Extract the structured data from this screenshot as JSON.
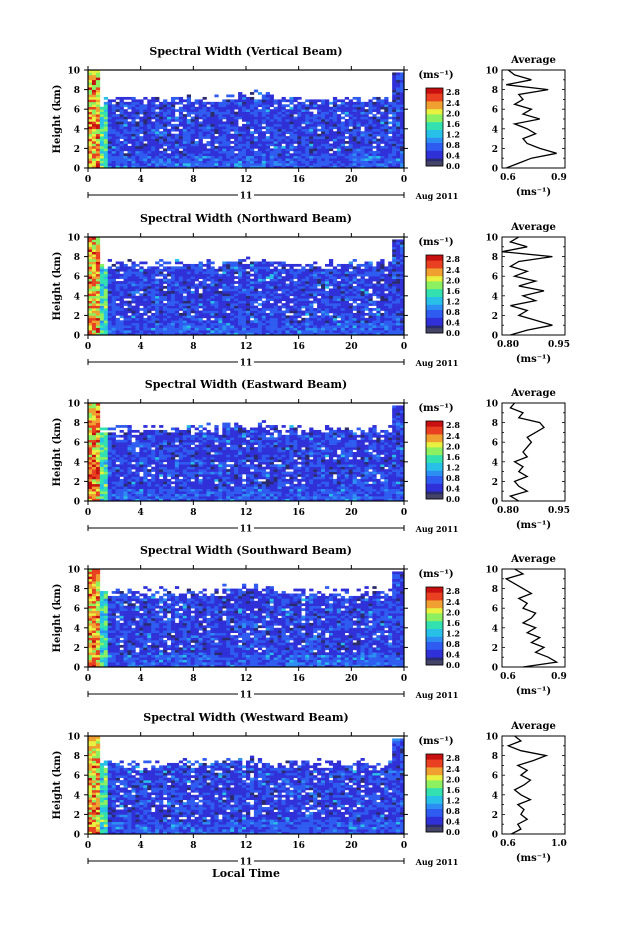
{
  "figure": {
    "xlabel": "Local Time",
    "date_label": "Aug 2011",
    "day_label": "11",
    "colorbar_unit": "(ms⁻¹)",
    "colorbar_ticks": [
      "0.0",
      "0.4",
      "0.8",
      "1.2",
      "1.6",
      "2.0",
      "2.4",
      "2.8"
    ],
    "profile_title": "Average",
    "profile_xlabel": "(ms⁻¹)",
    "ylabel": "Height (km)",
    "x_ticks": [
      "0",
      "4",
      "8",
      "12",
      "16",
      "20",
      "0"
    ],
    "y_ticks": [
      "0",
      "2",
      "4",
      "6",
      "8",
      "10"
    ],
    "colorscale": [
      "#2a2a6e",
      "#3030d8",
      "#2f5cf0",
      "#2c8ef2",
      "#29c0e8",
      "#32e0b0",
      "#8cf060",
      "#e8f040",
      "#f0a030",
      "#e84020",
      "#c81010"
    ]
  },
  "chart_data": [
    {
      "type": "heatmap",
      "title": "Spectral Width (Vertical Beam)",
      "xlabel": "",
      "ylabel": "Height (km)",
      "xlim": [
        0,
        24
      ],
      "ylim": [
        0,
        10
      ],
      "colorbar_range": [
        0,
        3.0
      ],
      "profile": {
        "title": "Average",
        "xlim": [
          0.6,
          0.9
        ],
        "xticks": [
          "0.6",
          "0.9"
        ],
        "heights": [
          0,
          0.5,
          1,
          1.5,
          2,
          2.5,
          3,
          3.5,
          4,
          4.5,
          5,
          5.5,
          6,
          6.5,
          7,
          7.5,
          8,
          8.5,
          9,
          9.5,
          10
        ],
        "values": [
          0.62,
          0.68,
          0.74,
          0.86,
          0.78,
          0.72,
          0.7,
          0.76,
          0.72,
          0.66,
          0.78,
          0.7,
          0.74,
          0.66,
          0.7,
          0.68,
          0.82,
          0.62,
          0.74,
          0.66,
          0.63
        ]
      }
    },
    {
      "type": "heatmap",
      "title": "Spectral Width (Northward Beam)",
      "xlabel": "",
      "ylabel": "Height (km)",
      "xlim": [
        0,
        24
      ],
      "ylim": [
        0,
        10
      ],
      "colorbar_range": [
        0,
        3.0
      ],
      "profile": {
        "title": "Average",
        "xlim": [
          0.8,
          0.95
        ],
        "xticks": [
          "0.80",
          "0.95"
        ],
        "heights": [
          0,
          0.5,
          1,
          1.5,
          2,
          2.5,
          3,
          3.5,
          4,
          4.5,
          5,
          5.5,
          6,
          6.5,
          7,
          7.5,
          8,
          8.5,
          9,
          9.5,
          10
        ],
        "values": [
          0.82,
          0.86,
          0.92,
          0.88,
          0.84,
          0.86,
          0.82,
          0.88,
          0.85,
          0.9,
          0.84,
          0.88,
          0.83,
          0.86,
          0.82,
          0.84,
          0.92,
          0.8,
          0.86,
          0.82,
          0.84
        ]
      }
    },
    {
      "type": "heatmap",
      "title": "Spectral Width (Eastward Beam)",
      "xlabel": "",
      "ylabel": "Height (km)",
      "xlim": [
        0,
        24
      ],
      "ylim": [
        0,
        10
      ],
      "colorbar_range": [
        0,
        3.0
      ],
      "profile": {
        "title": "Average",
        "xlim": [
          0.8,
          0.95
        ],
        "xticks": [
          "0.80",
          "0.95"
        ],
        "heights": [
          0,
          0.5,
          1,
          1.5,
          2,
          2.5,
          3,
          3.5,
          4,
          4.5,
          5,
          5.5,
          6,
          6.5,
          7,
          7.5,
          8,
          8.5,
          9,
          9.5,
          10
        ],
        "values": [
          0.84,
          0.82,
          0.86,
          0.84,
          0.83,
          0.86,
          0.84,
          0.85,
          0.83,
          0.86,
          0.85,
          0.86,
          0.87,
          0.86,
          0.88,
          0.9,
          0.89,
          0.84,
          0.85,
          0.82,
          0.83
        ]
      }
    },
    {
      "type": "heatmap",
      "title": "Spectral Width (Southward Beam)",
      "xlabel": "",
      "ylabel": "Height (km)",
      "xlim": [
        0,
        24
      ],
      "ylim": [
        0,
        10
      ],
      "colorbar_range": [
        0,
        3.0
      ],
      "profile": {
        "title": "Average",
        "xlim": [
          0.6,
          0.9
        ],
        "xticks": [
          "0.6",
          "0.9"
        ],
        "heights": [
          0,
          0.5,
          1,
          1.5,
          2,
          2.5,
          3,
          3.5,
          4,
          4.5,
          5,
          5.5,
          6,
          6.5,
          7,
          7.5,
          8,
          8.5,
          9,
          9.5,
          10
        ],
        "values": [
          0.7,
          0.86,
          0.82,
          0.76,
          0.8,
          0.74,
          0.78,
          0.72,
          0.76,
          0.7,
          0.74,
          0.76,
          0.7,
          0.72,
          0.68,
          0.74,
          0.7,
          0.66,
          0.62,
          0.7,
          0.66
        ]
      }
    },
    {
      "type": "heatmap",
      "title": "Spectral Width (Westward Beam)",
      "xlabel": "Local Time",
      "ylabel": "Height (km)",
      "xlim": [
        0,
        24
      ],
      "ylim": [
        0,
        10
      ],
      "colorbar_range": [
        0,
        3.0
      ],
      "profile": {
        "title": "Average",
        "xlim": [
          0.6,
          1.0
        ],
        "xticks": [
          "0.6",
          "1.0"
        ],
        "heights": [
          0,
          0.5,
          1,
          1.5,
          2,
          2.5,
          3,
          3.5,
          4,
          4.5,
          5,
          5.5,
          6,
          6.5,
          7,
          7.5,
          8,
          8.5,
          9,
          9.5,
          10
        ],
        "values": [
          0.66,
          0.72,
          0.7,
          0.76,
          0.72,
          0.74,
          0.7,
          0.78,
          0.72,
          0.68,
          0.74,
          0.78,
          0.72,
          0.76,
          0.7,
          0.8,
          0.88,
          0.72,
          0.64,
          0.72,
          0.68
        ]
      }
    }
  ]
}
